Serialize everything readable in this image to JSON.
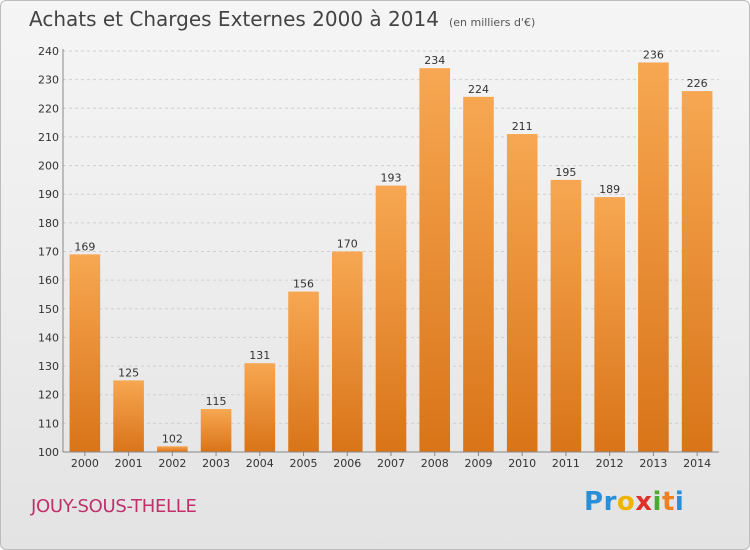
{
  "header": {
    "title": "Achats et Charges Externes 2000 à 2014",
    "subtitle": "(en milliers d'€)"
  },
  "place_name": "JOUY-SOUS-THELLE",
  "logo": {
    "letters": [
      "P",
      "r",
      "o",
      "x",
      "i",
      "t",
      "i"
    ],
    "colors": [
      "#2a8fd6",
      "#2a8fd6",
      "#f0b400",
      "#e0302a",
      "#4caa30",
      "#f08020",
      "#2a8fd6"
    ]
  },
  "colors": {
    "bar_top": "#f7a752",
    "bar_bottom": "#d97418",
    "grid": "#cfcfcf"
  },
  "chart_data": {
    "type": "bar",
    "title": "Achats et Charges Externes 2000 à 2014",
    "subtitle": "(en milliers d'€)",
    "xlabel": "",
    "ylabel": "",
    "categories": [
      "2000",
      "2001",
      "2002",
      "2003",
      "2004",
      "2005",
      "2006",
      "2007",
      "2008",
      "2009",
      "2010",
      "2011",
      "2012",
      "2013",
      "2014"
    ],
    "values": [
      169,
      125,
      102,
      115,
      131,
      156,
      170,
      193,
      234,
      224,
      211,
      195,
      189,
      236,
      226
    ],
    "ylim": [
      100,
      240
    ],
    "yticks": [
      100,
      110,
      120,
      130,
      140,
      150,
      160,
      170,
      180,
      190,
      200,
      210,
      220,
      230,
      240
    ],
    "grid": true,
    "data_labels": true
  }
}
